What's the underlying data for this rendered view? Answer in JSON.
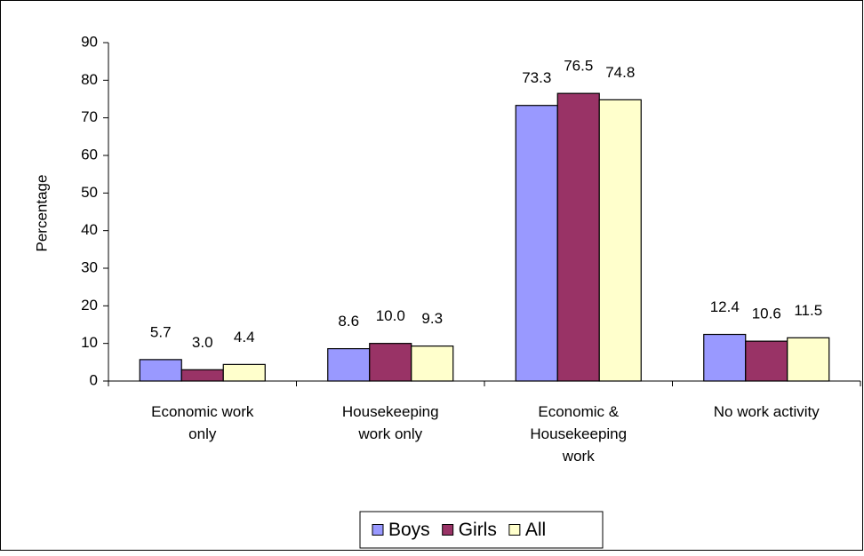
{
  "chart_data": {
    "type": "bar",
    "y_label": "Percentage",
    "categories": [
      "Economic work only",
      "Housekeeping work only",
      "Economic & Housekeeping work",
      "No work activity"
    ],
    "series": [
      {
        "name": "Boys",
        "color": "#9999ff",
        "values": [
          5.7,
          8.6,
          73.3,
          12.4
        ],
        "value_labels": [
          "5.7",
          "8.6",
          "73.3",
          "12.4"
        ]
      },
      {
        "name": "Girls",
        "color": "#993366",
        "values": [
          3.0,
          10.0,
          76.5,
          10.6
        ],
        "value_labels": [
          "3.0",
          "10.0",
          "76.5",
          "10.6"
        ]
      },
      {
        "name": "All",
        "color": "#ffffcc",
        "values": [
          4.4,
          9.3,
          74.8,
          11.5
        ],
        "value_labels": [
          "4.4",
          "9.3",
          "74.8",
          "11.5"
        ]
      }
    ],
    "ylim": [
      0,
      90
    ],
    "yticks": [
      0,
      10,
      20,
      30,
      40,
      50,
      60,
      70,
      80,
      90
    ],
    "grid": false,
    "legend": "bottom"
  }
}
